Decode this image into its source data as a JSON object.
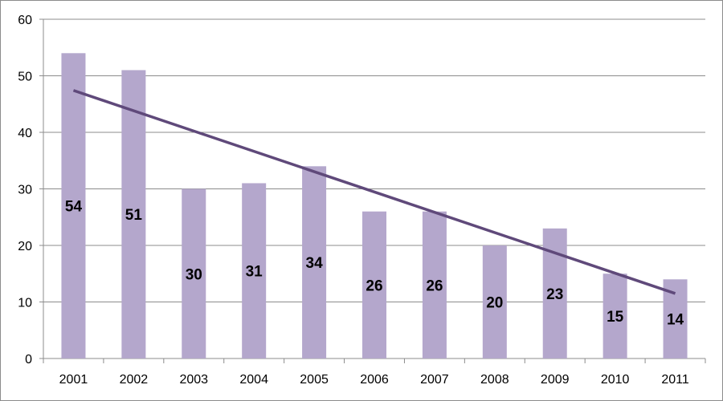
{
  "chart_data": {
    "type": "bar",
    "title": "",
    "xlabel": "",
    "ylabel": "",
    "categories": [
      "2001",
      "2002",
      "2003",
      "2004",
      "2005",
      "2006",
      "2007",
      "2008",
      "2009",
      "2010",
      "2011"
    ],
    "values": [
      54,
      51,
      30,
      31,
      34,
      26,
      26,
      20,
      23,
      15,
      14
    ],
    "data_labels": [
      "54",
      "51",
      "30",
      "31",
      "34",
      "26",
      "26",
      "20",
      "23",
      "15",
      "14"
    ],
    "ylim": [
      0,
      60
    ],
    "y_ticks": [
      0,
      10,
      20,
      30,
      40,
      50,
      60
    ],
    "grid": true,
    "legend": "none",
    "trendline": {
      "type": "linear",
      "visible": true
    },
    "colors": {
      "bar": "#b4a7cc",
      "trendline": "#5f497a",
      "grid": "#8c8c8c",
      "axis": "#8c8c8c"
    }
  }
}
